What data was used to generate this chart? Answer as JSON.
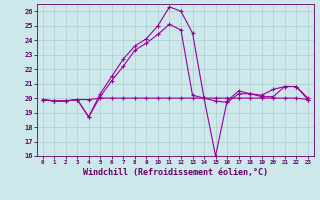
{
  "xlabel": "Windchill (Refroidissement éolien,°C)",
  "background_color": "#cce8ea",
  "grid_color": "#aacccc",
  "line_color": "#990099",
  "hours": [
    0,
    1,
    2,
    3,
    4,
    5,
    6,
    7,
    8,
    9,
    10,
    11,
    12,
    13,
    14,
    15,
    16,
    17,
    18,
    19,
    20,
    21,
    22,
    23
  ],
  "series1": [
    19.9,
    19.8,
    19.8,
    19.9,
    19.9,
    20.0,
    20.0,
    20.0,
    20.0,
    20.0,
    20.0,
    20.0,
    20.0,
    20.0,
    20.0,
    20.0,
    20.0,
    20.0,
    20.0,
    20.0,
    20.0,
    20.0,
    20.0,
    19.9
  ],
  "series2": [
    19.9,
    19.8,
    19.8,
    19.9,
    18.7,
    20.3,
    21.5,
    22.7,
    23.6,
    24.1,
    25.0,
    26.3,
    26.0,
    24.5,
    20.0,
    16.0,
    19.8,
    20.5,
    20.3,
    20.2,
    20.6,
    20.8,
    20.8,
    20.0
  ],
  "series3": [
    19.9,
    19.8,
    19.8,
    19.9,
    18.7,
    20.1,
    21.2,
    22.2,
    23.3,
    23.8,
    24.4,
    25.1,
    24.7,
    20.2,
    20.0,
    19.8,
    19.7,
    20.3,
    20.3,
    20.1,
    20.1,
    20.8,
    20.8,
    19.9
  ],
  "ylim": [
    16,
    26.5
  ],
  "xlim": [
    -0.5,
    23.5
  ],
  "yticks": [
    16,
    17,
    18,
    19,
    20,
    21,
    22,
    23,
    24,
    25,
    26
  ],
  "xticks": [
    0,
    1,
    2,
    3,
    4,
    5,
    6,
    7,
    8,
    9,
    10,
    11,
    12,
    13,
    14,
    15,
    16,
    17,
    18,
    19,
    20,
    21,
    22,
    23
  ]
}
